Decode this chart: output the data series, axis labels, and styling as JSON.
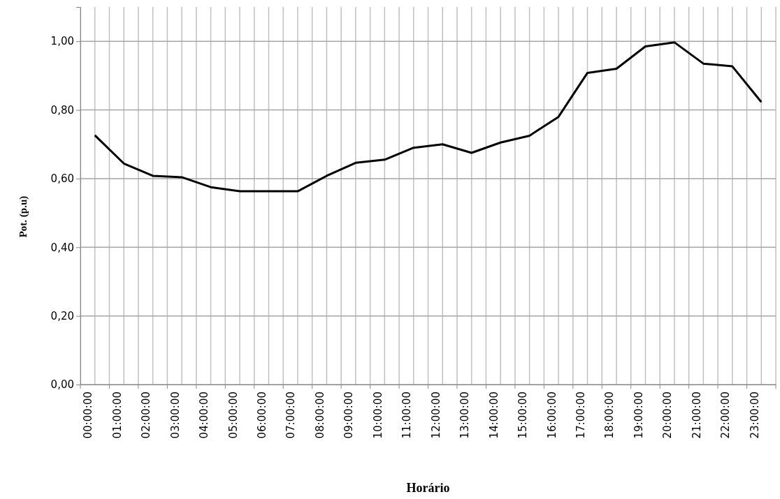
{
  "chart_data": {
    "type": "line",
    "xlabel": "Horário",
    "ylabel": "Pot. (p.u)",
    "categories": [
      "00:00:00",
      "01:00:00",
      "02:00:00",
      "03:00:00",
      "04:00:00",
      "05:00:00",
      "06:00:00",
      "07:00:00",
      "08:00:00",
      "09:00:00",
      "10:00:00",
      "11:00:00",
      "12:00:00",
      "13:00:00",
      "14:00:00",
      "15:00:00",
      "16:00:00",
      "17:00:00",
      "18:00:00",
      "19:00:00",
      "20:00:00",
      "21:00:00",
      "22:00:00",
      "23:00:00"
    ],
    "series": [
      {
        "color": "#000000",
        "values": [
          0.726,
          0.644,
          0.608,
          0.604,
          0.575,
          0.563,
          0.563,
          0.563,
          0.608,
          0.646,
          0.655,
          0.69,
          0.7,
          0.675,
          0.705,
          0.725,
          0.78,
          0.908,
          0.92,
          0.985,
          0.997,
          0.935,
          0.927,
          0.823
        ]
      }
    ],
    "ylim": [
      0,
      1.1
    ],
    "yticks": [
      {
        "value": 0,
        "label": "0,00"
      },
      {
        "value": 0.2,
        "label": "0,20"
      },
      {
        "value": 0.4,
        "label": "0,40"
      },
      {
        "value": 0.6,
        "label": "0,60"
      },
      {
        "value": 0.8,
        "label": "0,80"
      },
      {
        "value": 1,
        "label": "1,00"
      }
    ],
    "grid": true,
    "marker": "none",
    "line_style": "solid"
  }
}
